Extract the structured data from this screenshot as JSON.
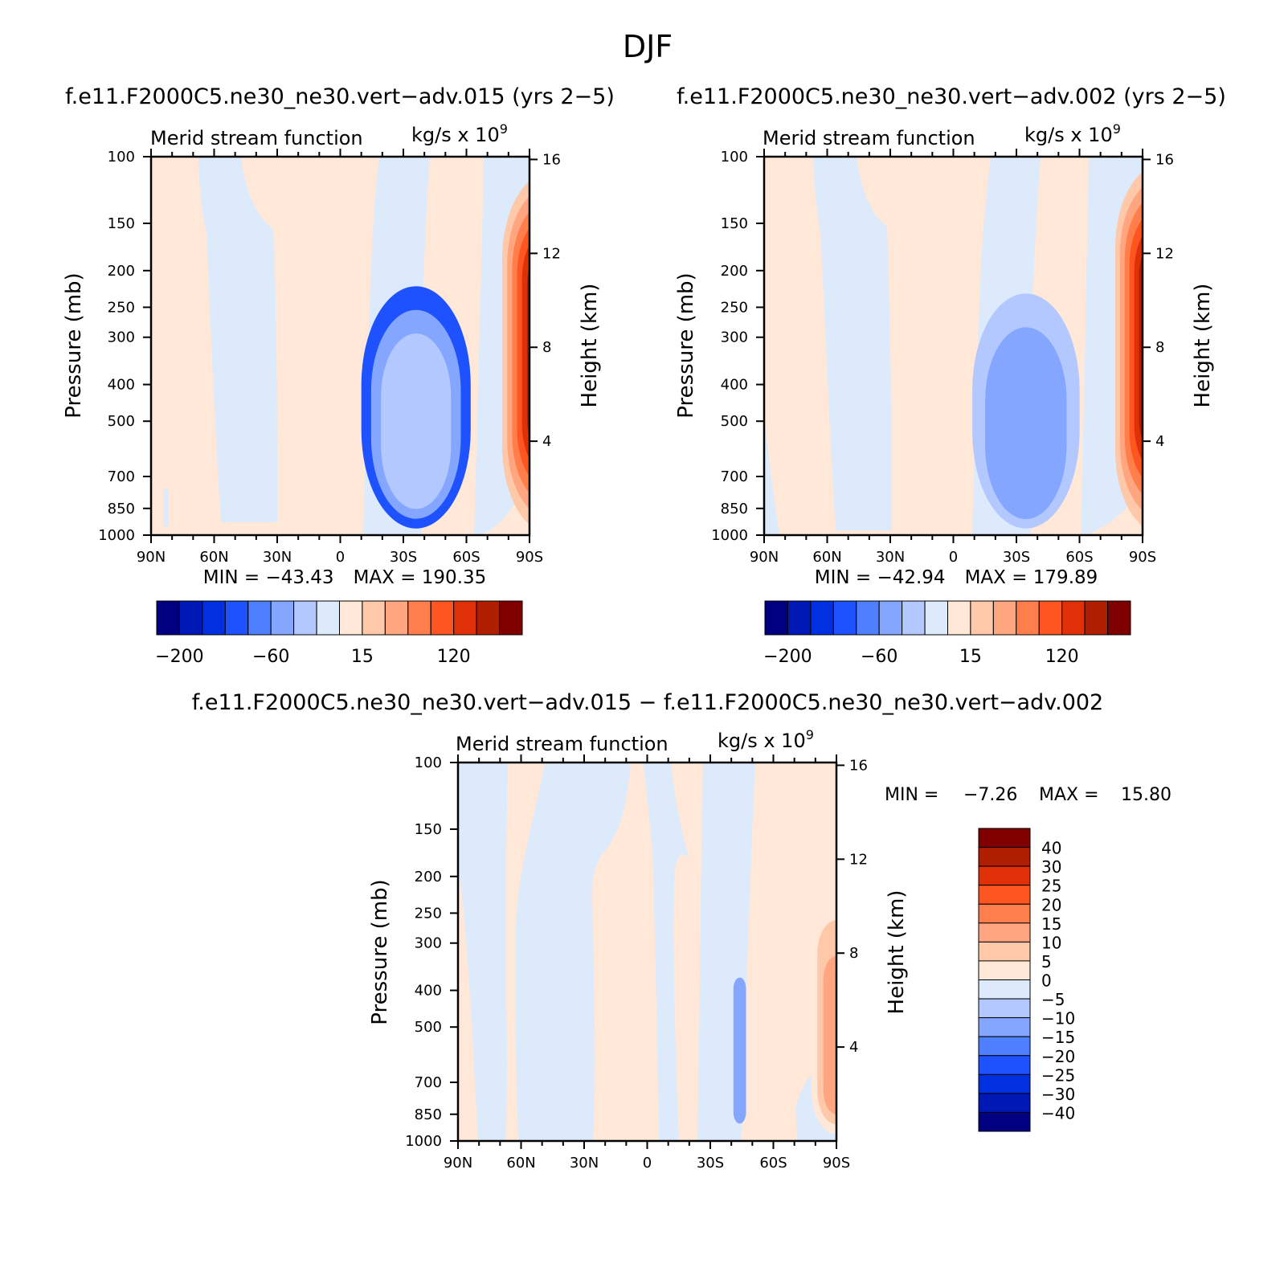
{
  "figure": {
    "title": "DJF"
  },
  "chart_data": [
    {
      "type": "heatmap",
      "title": "f.e11.F2000C5.ne30_ne30.vert−adv.015 (yrs 2−5)",
      "subtitle": "Merid stream function",
      "units_text": "kg/s x 10",
      "units_exp": "9",
      "xlabel": "",
      "ylabel": "Pressure (mb)",
      "y2label": "Height (km)",
      "x_ticks": [
        "90N",
        "60N",
        "30N",
        "0",
        "30S",
        "60S",
        "90S"
      ],
      "y_ticks": [
        "100",
        "150",
        "200",
        "250",
        "300",
        "400",
        "500",
        "700",
        "850",
        "1000"
      ],
      "y2_ticks": [
        "16",
        "12",
        "8",
        "4"
      ],
      "ylim": [
        1000,
        100
      ],
      "y_scale": "log",
      "min_label": "MIN = −43.43",
      "max_label": "MAX = 190.35",
      "colorbar_orientation": "horizontal",
      "colorbar_labels": [
        "−200",
        "−60",
        "15",
        "120"
      ],
      "cells": [
        {
          "name": "cell-nh-ferrel",
          "lat": [
            -10,
            -62
          ],
          "p": [
            220,
            960
          ],
          "cols": [
            3,
            5,
            6,
            6
          ]
        },
        {
          "name": "cell-hadley",
          "lat": [
            -77,
            -123
          ],
          "p": [
            110,
            990
          ],
          "cols": [
            9,
            10,
            11,
            12,
            13,
            14,
            15
          ]
        },
        {
          "name": "cell-sh-hadley-edge",
          "lat": [
            -133,
            -153
          ],
          "p": [
            200,
            990
          ],
          "cols": [
            6,
            5,
            5
          ]
        },
        {
          "name": "cell-sh-ferrel",
          "lat": [
            -147,
            -172
          ],
          "p": [
            210,
            985
          ],
          "cols": [
            9,
            10,
            10
          ]
        }
      ]
    },
    {
      "type": "heatmap",
      "title": "f.e11.F2000C5.ne30_ne30.vert−adv.002 (yrs 2−5)",
      "subtitle": "Merid stream function",
      "units_text": "kg/s x 10",
      "units_exp": "9",
      "xlabel": "",
      "ylabel": "Pressure (mb)",
      "y2label": "Height (km)",
      "x_ticks": [
        "90N",
        "60N",
        "30N",
        "0",
        "30S",
        "60S",
        "90S"
      ],
      "y_ticks": [
        "100",
        "150",
        "200",
        "250",
        "300",
        "400",
        "500",
        "700",
        "850",
        "1000"
      ],
      "y2_ticks": [
        "16",
        "12",
        "8",
        "4"
      ],
      "ylim": [
        1000,
        100
      ],
      "y_scale": "log",
      "min_label": "MIN = −42.94",
      "max_label": "MAX = 179.89",
      "colorbar_orientation": "horizontal",
      "colorbar_labels": [
        "−200",
        "−60",
        "15",
        "120"
      ],
      "cells": [
        {
          "name": "cell-nh-ferrel",
          "lat": [
            -9,
            -60
          ],
          "p": [
            230,
            960
          ],
          "cols": [
            6,
            5,
            5
          ]
        },
        {
          "name": "cell-hadley",
          "lat": [
            -77,
            -121
          ],
          "p": [
            105,
            990
          ],
          "cols": [
            9,
            10,
            11,
            12,
            13,
            14,
            15
          ]
        },
        {
          "name": "cell-sh-hadley-edge",
          "lat": [
            -133,
            -152
          ],
          "p": [
            190,
            985
          ],
          "cols": [
            6,
            5,
            5
          ]
        },
        {
          "name": "cell-sh-ferrel",
          "lat": [
            -145,
            -172
          ],
          "p": [
            205,
            985
          ],
          "cols": [
            9,
            10,
            10
          ]
        }
      ]
    },
    {
      "type": "heatmap",
      "title": "f.e11.F2000C5.ne30_ne30.vert−adv.015 − f.e11.F2000C5.ne30_ne30.vert−adv.002",
      "subtitle": "Merid stream function",
      "units_text": "kg/s x 10",
      "units_exp": "9",
      "xlabel": "",
      "ylabel": "Pressure (mb)",
      "y2label": "Height (km)",
      "x_ticks": [
        "90N",
        "60N",
        "30N",
        "0",
        "30S",
        "60S",
        "90S"
      ],
      "y_ticks": [
        "100",
        "150",
        "200",
        "250",
        "300",
        "400",
        "500",
        "700",
        "850",
        "1000"
      ],
      "y2_ticks": [
        "16",
        "12",
        "8",
        "4"
      ],
      "ylim": [
        1000,
        100
      ],
      "y_scale": "log",
      "min_label": "MIN =",
      "min_value": "−7.26",
      "max_label": "MAX =",
      "max_value": "15.80",
      "colorbar_orientation": "vertical",
      "colorbar_labels": [
        "40",
        "30",
        "25",
        "20",
        "15",
        "10",
        "5",
        "0",
        "−5",
        "−10",
        "−15",
        "−20",
        "−25",
        "−30",
        "−40"
      ],
      "cells": [
        {
          "name": "cell-diff-neg-nh",
          "lat": [
            -41,
            -47
          ],
          "p": [
            370,
            900
          ],
          "cols": [
            5
          ]
        },
        {
          "name": "cell-diff-pos-tropics",
          "lat": [
            -78,
            -102
          ],
          "p": [
            210,
            960
          ],
          "cols": [
            8,
            9,
            10
          ]
        },
        {
          "name": "cell-diff-pos-south",
          "lat": [
            -119,
            -123
          ],
          "p": [
            265,
            770
          ],
          "cols": [
            8
          ]
        },
        {
          "name": "cell-diff-neg-sh",
          "lat": [
            -134,
            -140
          ],
          "p": [
            390,
            900
          ],
          "cols": [
            5
          ]
        },
        {
          "name": "cell-diff-pos-sh",
          "lat": [
            -154,
            -160
          ],
          "p": [
            380,
            940
          ],
          "cols": [
            8
          ]
        }
      ]
    }
  ],
  "colormap": [
    "#000080",
    "#0018B4",
    "#0030E0",
    "#1F52FF",
    "#4D7FFF",
    "#85A6FF",
    "#B3C8FF",
    "#DCEAFB",
    "#FFE8D7",
    "#FFC8A8",
    "#FFA680",
    "#FF7E4C",
    "#FF5520",
    "#E03008",
    "#B01E00",
    "#800000"
  ]
}
